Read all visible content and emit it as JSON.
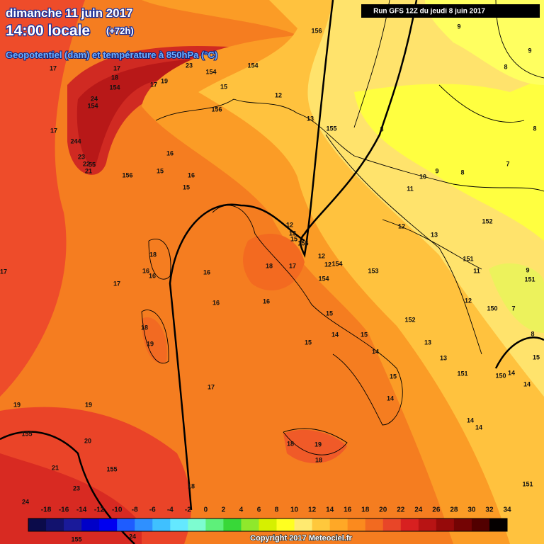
{
  "header": {
    "title": "dimanche 11 juin 2017",
    "time": "14:00 locale",
    "offset": "(+72h)",
    "subtitle": "Geopotentiel (dam) et température à 850hPa (°C)"
  },
  "run": "Run GFS 12Z du jeudi 8 juin 2017",
  "legend": {
    "ticks": [
      -18,
      -16,
      -14,
      -12,
      -10,
      -8,
      -6,
      -4,
      -2,
      0,
      2,
      4,
      6,
      8,
      10,
      12,
      14,
      16,
      18,
      20,
      22,
      24,
      26,
      28,
      30,
      32,
      34
    ],
    "colors": [
      "#0b0b4a",
      "#12126e",
      "#1a1a9a",
      "#0000c8",
      "#0000f0",
      "#1e5cff",
      "#2f90ff",
      "#3fc0ff",
      "#64e8ff",
      "#7dfcd0",
      "#5ef07a",
      "#38d838",
      "#8fe82c",
      "#d6f000",
      "#ffff20",
      "#ffea70",
      "#ffc83c",
      "#ffa826",
      "#fb8a1e",
      "#f26a20",
      "#e84628",
      "#d82020",
      "#b81414",
      "#960a0a",
      "#740404",
      "#520000",
      "#050000"
    ]
  },
  "copyright": "Copyright 2017 Meteociel.fr",
  "labels": [
    17,
    17,
    18,
    24,
    154,
    154,
    17,
    244,
    23,
    22,
    55,
    21,
    156,
    15,
    16,
    16,
    15,
    17,
    19,
    23,
    154,
    154,
    15,
    156,
    12,
    156,
    155,
    13,
    8,
    9,
    9,
    8,
    8,
    7,
    8,
    10,
    9,
    11,
    152,
    12,
    13,
    151,
    11,
    9,
    151,
    12,
    150,
    7,
    8,
    152,
    13,
    13,
    151,
    150,
    14,
    15,
    14,
    14,
    14,
    151,
    12,
    13,
    15,
    155,
    12,
    12,
    154,
    153,
    154,
    18,
    17,
    18,
    16,
    16,
    16,
    17,
    17,
    16,
    16,
    15,
    15,
    14,
    15,
    14,
    15,
    14,
    17,
    18,
    19,
    19,
    19,
    155,
    20,
    21,
    155,
    23,
    24,
    18,
    18,
    19,
    18,
    155,
    24
  ]
}
